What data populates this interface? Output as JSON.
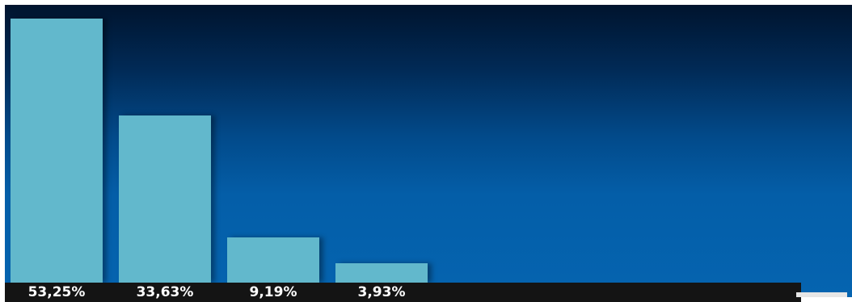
{
  "chart_data": {
    "type": "bar",
    "categories": [
      "53,25%",
      "33,63%",
      "9,19%",
      "3,93%"
    ],
    "values": [
      53.25,
      33.63,
      9.19,
      3.93
    ],
    "title": "",
    "xlabel": "",
    "ylabel": "",
    "ylim": [
      0,
      56
    ],
    "grid": false,
    "legend": "none",
    "colors": {
      "bar": "#62b8cc",
      "background_top": "#00142e",
      "background_bottom": "#0564b0",
      "label_strip": "#141414",
      "label_text": "#ffffff"
    }
  }
}
